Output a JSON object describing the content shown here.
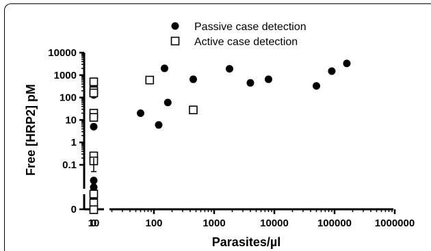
{
  "chart_data": {
    "type": "scatter",
    "xlabel": "Parasites/µl",
    "ylabel": "Free [HRP2] pM",
    "x_scale": "log",
    "y_scale": "log",
    "x_tick_labels": [
      "0",
      "10",
      "100",
      "1000",
      "10000",
      "100000",
      "1000000"
    ],
    "y_tick_labels": [
      "10000",
      "1000",
      "100",
      "10",
      "1",
      "0.1",
      "0"
    ],
    "legend_position": "top-center",
    "series": [
      {
        "name": "Passive case detection",
        "marker": "filled-circle",
        "points": [
          {
            "x": 0,
            "y": 350
          },
          {
            "x": 0,
            "y": 130
          },
          {
            "x": 0,
            "y": 5
          },
          {
            "x": 0,
            "y": 0.02
          },
          {
            "x": 0,
            "y": 0.01
          },
          {
            "x": 0,
            "y": 0.003
          },
          {
            "x": 0,
            "y": 0.001
          },
          {
            "x": 60,
            "y": 20
          },
          {
            "x": 120,
            "y": 6
          },
          {
            "x": 150,
            "y": 2000
          },
          {
            "x": 170,
            "y": 60
          },
          {
            "x": 450,
            "y": 650
          },
          {
            "x": 1800,
            "y": 1900
          },
          {
            "x": 4000,
            "y": 450
          },
          {
            "x": 8000,
            "y": 650
          },
          {
            "x": 50000,
            "y": 330
          },
          {
            "x": 90000,
            "y": 1500
          },
          {
            "x": 160000,
            "y": 3300
          }
        ]
      },
      {
        "name": "Active case detection",
        "marker": "open-square",
        "points": [
          {
            "x": 0,
            "y": 500
          },
          {
            "x": 0,
            "y": 200
          },
          {
            "x": 0,
            "y": 160
          },
          {
            "x": 0,
            "y": 20
          },
          {
            "x": 0,
            "y": 13
          },
          {
            "x": 0,
            "y": 0.25
          },
          {
            "x": 0,
            "y": 0.15
          },
          {
            "x": 0,
            "y": 0.005
          },
          {
            "x": 0,
            "y": 0.002
          },
          {
            "x": 0,
            "y": 0.001
          },
          {
            "x": 85,
            "y": 600
          },
          {
            "x": 450,
            "y": 28
          }
        ]
      }
    ],
    "error_bars": [
      {
        "x": 0,
        "y_low": 0.05,
        "y_high": 0.2
      }
    ],
    "colors": {
      "axis": "#000000",
      "marker": "#000000",
      "background": "#ffffff"
    }
  }
}
